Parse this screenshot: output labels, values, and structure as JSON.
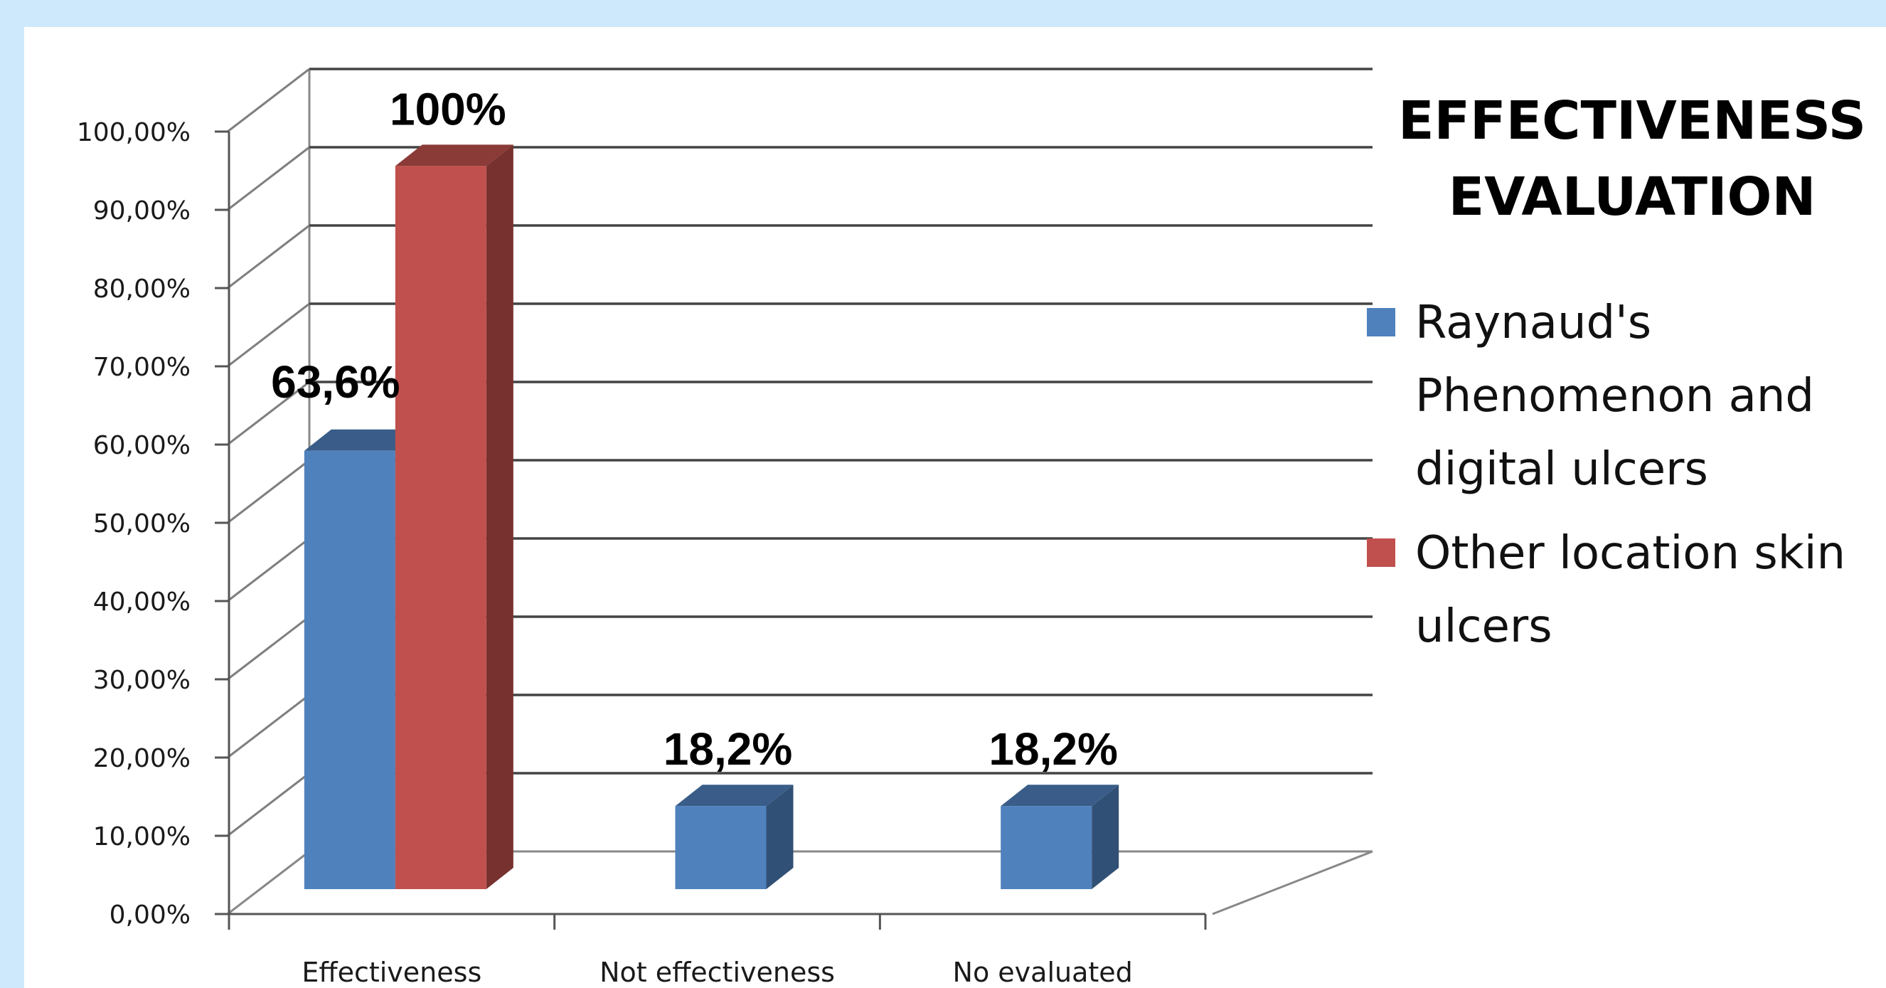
{
  "chart_data": {
    "type": "bar",
    "title_lines": [
      "EFFECTIVENESS",
      "EVALUATION"
    ],
    "categories": [
      "Effectiveness",
      "Not effectiveness",
      "No evaluated"
    ],
    "series": [
      {
        "name_lines": [
          "Raynaud's",
          "Phenomenon and",
          "digital ulcers"
        ],
        "color": "#4f81bd",
        "values": [
          63.6,
          18.2,
          18.2
        ],
        "labels": [
          "63,6%",
          "18,2%",
          "18,2%"
        ]
      },
      {
        "name_lines": [
          "Other location skin",
          "ulcers"
        ],
        "color": "#c0504d",
        "values": [
          100,
          null,
          null
        ],
        "labels": [
          "100%",
          "",
          ""
        ]
      }
    ],
    "ylim": [
      0,
      100
    ],
    "y_ticks": [
      0,
      10,
      20,
      30,
      40,
      50,
      60,
      70,
      80,
      90,
      100
    ],
    "y_tick_labels": [
      "0,00%",
      "10,00%",
      "20,00%",
      "30,00%",
      "40,00%",
      "50,00%",
      "60,00%",
      "70,00%",
      "80,00%",
      "90,00%",
      "100,00%"
    ],
    "grid": true,
    "legend_position": "right",
    "style": "3d-clustered-column"
  }
}
